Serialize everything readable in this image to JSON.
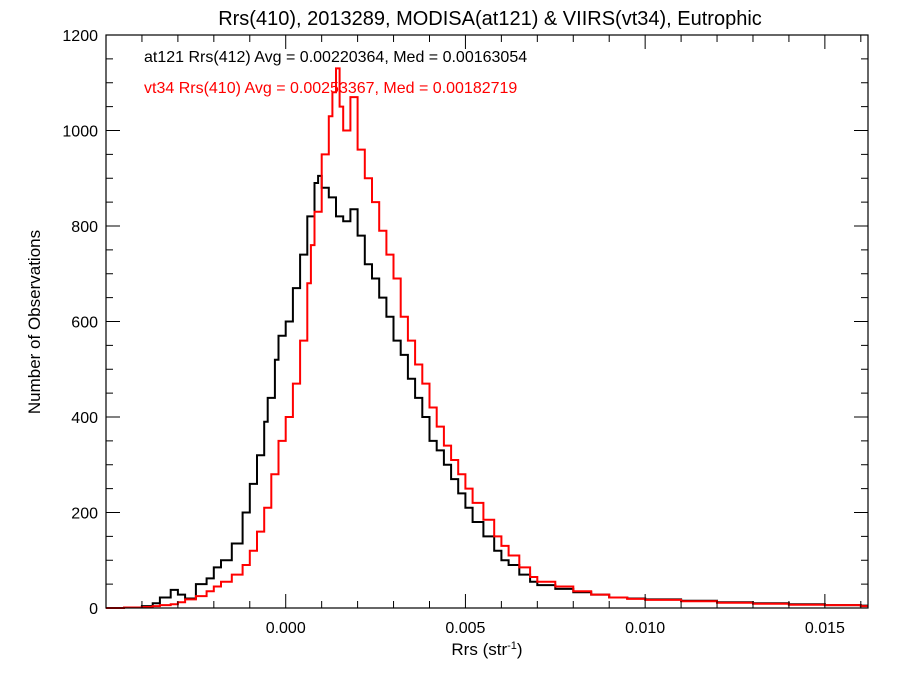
{
  "chart_data": {
    "type": "histogram",
    "title": "Rrs(410), 2013289, MODISA(at121) & VIIRS(vt34), Eutrophic",
    "xlabel": "Rrs (str",
    "xlabel_sup": "-1",
    "xlabel_close": ")",
    "ylabel": "Number of Observations",
    "xlim": [
      -0.005,
      0.0162
    ],
    "ylim": [
      0,
      1200
    ],
    "x_ticks": [
      0.0,
      0.005,
      0.01,
      0.015
    ],
    "x_tick_labels": [
      "0.000",
      "0.005",
      "0.010",
      "0.015"
    ],
    "y_ticks": [
      0,
      200,
      400,
      600,
      800,
      1000,
      1200
    ],
    "y_tick_labels": [
      "0",
      "200",
      "400",
      "600",
      "800",
      "1000",
      "1200"
    ],
    "grid": false,
    "annotations": [
      {
        "text": "at121 Rrs(412) Avg = 0.00220364, Med = 0.00163054",
        "color": "#000000"
      },
      {
        "text": "vt34 Rrs(410) Avg = 0.00253367, Med = 0.00182719",
        "color": "#ff0000"
      }
    ],
    "series": [
      {
        "color": "#000000",
        "points": [
          [
            -0.005,
            0
          ],
          [
            -0.0045,
            1
          ],
          [
            -0.004,
            4
          ],
          [
            -0.0037,
            10
          ],
          [
            -0.0035,
            22
          ],
          [
            -0.0032,
            38
          ],
          [
            -0.003,
            28
          ],
          [
            -0.0028,
            20
          ],
          [
            -0.0025,
            50
          ],
          [
            -0.0022,
            62
          ],
          [
            -0.002,
            85
          ],
          [
            -0.0018,
            100
          ],
          [
            -0.0015,
            135
          ],
          [
            -0.0012,
            200
          ],
          [
            -0.001,
            260
          ],
          [
            -0.0008,
            320
          ],
          [
            -0.0006,
            390
          ],
          [
            -0.0005,
            440
          ],
          [
            -0.0003,
            520
          ],
          [
            -0.0002,
            570
          ],
          [
            0.0,
            600
          ],
          [
            0.0002,
            670
          ],
          [
            0.0004,
            740
          ],
          [
            0.0006,
            820
          ],
          [
            0.0008,
            890
          ],
          [
            0.0009,
            905
          ],
          [
            0.001,
            880
          ],
          [
            0.0012,
            860
          ],
          [
            0.0014,
            820
          ],
          [
            0.0016,
            810
          ],
          [
            0.0018,
            835
          ],
          [
            0.002,
            780
          ],
          [
            0.0022,
            720
          ],
          [
            0.0024,
            690
          ],
          [
            0.0026,
            650
          ],
          [
            0.0028,
            610
          ],
          [
            0.003,
            560
          ],
          [
            0.0032,
            530
          ],
          [
            0.0034,
            480
          ],
          [
            0.0036,
            440
          ],
          [
            0.0038,
            400
          ],
          [
            0.004,
            350
          ],
          [
            0.0042,
            330
          ],
          [
            0.0044,
            300
          ],
          [
            0.0046,
            270
          ],
          [
            0.0048,
            240
          ],
          [
            0.005,
            210
          ],
          [
            0.0052,
            180
          ],
          [
            0.0055,
            150
          ],
          [
            0.0058,
            120
          ],
          [
            0.006,
            100
          ],
          [
            0.0062,
            90
          ],
          [
            0.0065,
            70
          ],
          [
            0.0068,
            55
          ],
          [
            0.007,
            48
          ],
          [
            0.0075,
            40
          ],
          [
            0.008,
            33
          ],
          [
            0.0085,
            28
          ],
          [
            0.009,
            22
          ],
          [
            0.0095,
            20
          ],
          [
            0.01,
            18
          ],
          [
            0.011,
            15
          ],
          [
            0.012,
            12
          ],
          [
            0.013,
            10
          ],
          [
            0.014,
            8
          ],
          [
            0.015,
            6
          ],
          [
            0.016,
            5
          ]
        ]
      },
      {
        "color": "#ff0000",
        "points": [
          [
            -0.005,
            0
          ],
          [
            -0.0045,
            1
          ],
          [
            -0.004,
            2
          ],
          [
            -0.0037,
            4
          ],
          [
            -0.0035,
            6
          ],
          [
            -0.0032,
            8
          ],
          [
            -0.003,
            12
          ],
          [
            -0.0028,
            18
          ],
          [
            -0.0025,
            25
          ],
          [
            -0.0022,
            35
          ],
          [
            -0.002,
            45
          ],
          [
            -0.0018,
            55
          ],
          [
            -0.0015,
            70
          ],
          [
            -0.0012,
            90
          ],
          [
            -0.001,
            120
          ],
          [
            -0.0008,
            160
          ],
          [
            -0.0006,
            210
          ],
          [
            -0.0004,
            280
          ],
          [
            -0.0002,
            350
          ],
          [
            0.0,
            400
          ],
          [
            0.0002,
            470
          ],
          [
            0.0004,
            560
          ],
          [
            0.0006,
            680
          ],
          [
            0.0007,
            760
          ],
          [
            0.0008,
            830
          ],
          [
            0.001,
            950
          ],
          [
            0.0012,
            1030
          ],
          [
            0.0013,
            1080
          ],
          [
            0.0014,
            1130
          ],
          [
            0.0015,
            1050
          ],
          [
            0.0016,
            1000
          ],
          [
            0.0018,
            1070
          ],
          [
            0.002,
            960
          ],
          [
            0.0022,
            900
          ],
          [
            0.0024,
            850
          ],
          [
            0.0026,
            790
          ],
          [
            0.0028,
            740
          ],
          [
            0.003,
            690
          ],
          [
            0.0032,
            610
          ],
          [
            0.0034,
            560
          ],
          [
            0.0036,
            510
          ],
          [
            0.0038,
            470
          ],
          [
            0.004,
            420
          ],
          [
            0.0042,
            380
          ],
          [
            0.0044,
            340
          ],
          [
            0.0046,
            310
          ],
          [
            0.0048,
            280
          ],
          [
            0.005,
            250
          ],
          [
            0.0052,
            220
          ],
          [
            0.0055,
            185
          ],
          [
            0.0058,
            150
          ],
          [
            0.006,
            130
          ],
          [
            0.0062,
            110
          ],
          [
            0.0065,
            85
          ],
          [
            0.0068,
            65
          ],
          [
            0.007,
            55
          ],
          [
            0.0075,
            45
          ],
          [
            0.008,
            35
          ],
          [
            0.0085,
            28
          ],
          [
            0.009,
            22
          ],
          [
            0.0095,
            19
          ],
          [
            0.01,
            17
          ],
          [
            0.011,
            14
          ],
          [
            0.012,
            11
          ],
          [
            0.013,
            9
          ],
          [
            0.014,
            7
          ],
          [
            0.015,
            6
          ],
          [
            0.016,
            4
          ]
        ]
      }
    ]
  }
}
